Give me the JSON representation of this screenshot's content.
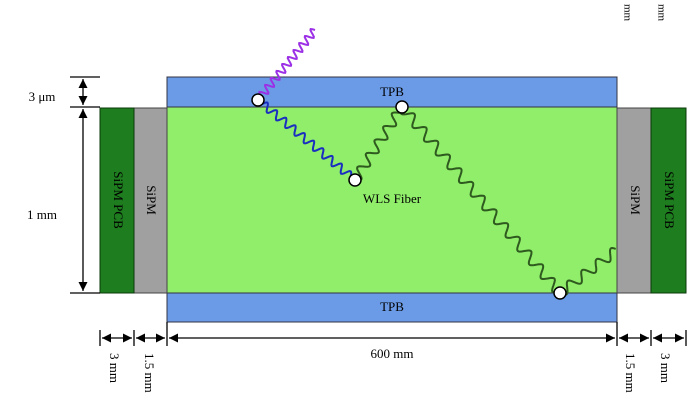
{
  "dimensions": {
    "top_band": "3 μm",
    "height": "1 mm",
    "length": "600 mm",
    "sipm_left": "1.5 mm",
    "pcb_left": "3 mm",
    "sipm_right": "1.5 mm",
    "pcb_right": "3 mm"
  },
  "layers": {
    "tpb_top": "TPB",
    "tpb_bottom": "TPB",
    "fiber": "WLS Fiber"
  },
  "detectors": {
    "sipm_left": "SiPM",
    "pcb_left": "SiPM PCB",
    "sipm_right": "SiPM",
    "pcb_right": "SiPM PCB"
  },
  "corner": {
    "left": "mm",
    "right": "mm"
  }
}
